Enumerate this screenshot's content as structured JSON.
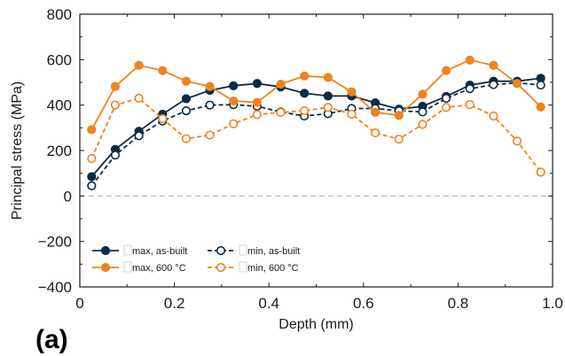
{
  "panel_label": "(a)",
  "colors": {
    "navy": "#0b2b45",
    "orange": "#ee8420",
    "zero_line": "#b3b3b3",
    "axis": "#1a1a1a"
  },
  "chart_data": {
    "type": "line",
    "xlabel": "Depth (mm)",
    "ylabel": "Principal stress (MPa)",
    "xlim": [
      0,
      1.0
    ],
    "ylim": [
      -400,
      800
    ],
    "xticks": [
      0,
      0.2,
      0.4,
      0.6,
      0.8,
      1.0
    ],
    "xtick_labels": [
      "0",
      "0.2",
      "0.4",
      "0.6",
      "0.8",
      "1.0"
    ],
    "yticks": [
      -400,
      -200,
      0,
      200,
      400,
      600,
      800
    ],
    "ytick_labels": [
      "−400",
      "−200",
      "0",
      "200",
      "400",
      "600",
      "800"
    ],
    "reference_line": 0,
    "legend_position": "lower-left",
    "x": [
      0.025,
      0.075,
      0.125,
      0.175,
      0.225,
      0.275,
      0.325,
      0.375,
      0.425,
      0.475,
      0.525,
      0.575,
      0.625,
      0.675,
      0.725,
      0.775,
      0.825,
      0.875,
      0.925,
      0.975
    ],
    "series": [
      {
        "name": "max, as-built",
        "color": "#0b2b45",
        "dashed": false,
        "marker": "filled",
        "values": [
          85,
          205,
          285,
          360,
          428,
          465,
          485,
          495,
          480,
          452,
          440,
          440,
          410,
          382,
          395,
          438,
          488,
          505,
          505,
          518
        ]
      },
      {
        "name": "min, as-built",
        "color": "#0b2b45",
        "dashed": true,
        "marker": "hollow",
        "values": [
          45,
          180,
          265,
          330,
          375,
          400,
          402,
          395,
          370,
          352,
          362,
          385,
          385,
          375,
          370,
          430,
          472,
          490,
          498,
          488
        ]
      },
      {
        "name": "max, 600 °C",
        "color": "#ee8420",
        "dashed": false,
        "marker": "filled",
        "values": [
          292,
          482,
          575,
          552,
          505,
          482,
          418,
          412,
          492,
          528,
          522,
          458,
          368,
          355,
          448,
          552,
          598,
          575,
          495,
          392
        ]
      },
      {
        "name": "min, 600 °C",
        "color": "#ee8420",
        "dashed": true,
        "marker": "hollow",
        "values": [
          165,
          400,
          430,
          340,
          252,
          268,
          318,
          358,
          368,
          375,
          390,
          360,
          278,
          250,
          315,
          390,
          402,
          352,
          242,
          105
        ]
      }
    ]
  }
}
